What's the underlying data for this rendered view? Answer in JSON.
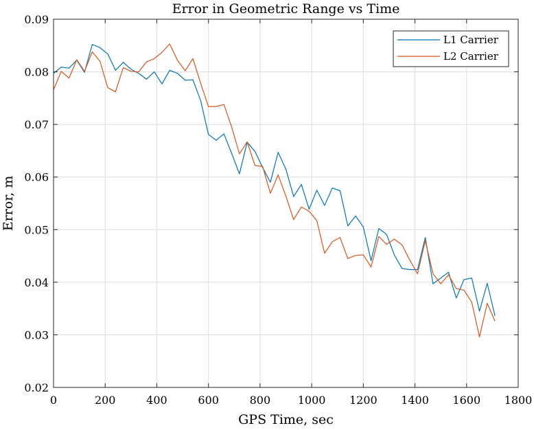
{
  "chart_data": {
    "type": "line",
    "title": "Error in Geometric Range vs Time",
    "xlabel": "GPS Time, sec",
    "ylabel": "Error, m",
    "xlim": [
      0,
      1800
    ],
    "ylim": [
      0.02,
      0.09
    ],
    "xticks": [
      0,
      200,
      400,
      600,
      800,
      1000,
      1200,
      1400,
      1600,
      1800
    ],
    "yticks": [
      0.02,
      0.03,
      0.04,
      0.05,
      0.06,
      0.07,
      0.08,
      0.09
    ],
    "xtick_labels": [
      "0",
      "200",
      "400",
      "600",
      "800",
      "1000",
      "1200",
      "1400",
      "1600",
      "1800"
    ],
    "ytick_labels": [
      "0.02",
      "0.03",
      "0.04",
      "0.05",
      "0.06",
      "0.07",
      "0.08",
      "0.09"
    ],
    "grid": true,
    "legend_position": "top-right",
    "x": [
      0,
      30,
      60,
      90,
      120,
      150,
      180,
      210,
      240,
      270,
      300,
      330,
      360,
      390,
      420,
      450,
      480,
      510,
      540,
      570,
      600,
      630,
      660,
      690,
      720,
      750,
      780,
      810,
      840,
      870,
      900,
      930,
      960,
      990,
      1020,
      1050,
      1080,
      1110,
      1140,
      1170,
      1200,
      1230,
      1260,
      1290,
      1320,
      1350,
      1380,
      1410,
      1440,
      1470,
      1500,
      1530,
      1560,
      1590,
      1620,
      1650,
      1680,
      1710
    ],
    "series": [
      {
        "name": "L1 Carrier",
        "color": "#0072BD",
        "values": [
          0.0797,
          0.0809,
          0.0807,
          0.0822,
          0.0799,
          0.0852,
          0.0846,
          0.0834,
          0.0803,
          0.0818,
          0.0805,
          0.0797,
          0.0786,
          0.08,
          0.0777,
          0.0803,
          0.0797,
          0.0784,
          0.0785,
          0.0745,
          0.0681,
          0.067,
          0.0682,
          0.0645,
          0.0606,
          0.0666,
          0.0649,
          0.0618,
          0.059,
          0.0647,
          0.0615,
          0.0563,
          0.0586,
          0.0539,
          0.0575,
          0.0546,
          0.0579,
          0.0574,
          0.0507,
          0.0526,
          0.0505,
          0.0441,
          0.0502,
          0.0491,
          0.0452,
          0.0426,
          0.0424,
          0.0424,
          0.0485,
          0.0397,
          0.0408,
          0.0419,
          0.037,
          0.0405,
          0.0408,
          0.0345,
          0.0398,
          0.0336
        ]
      },
      {
        "name": "L2 Carrier",
        "color": "#D95319",
        "values": [
          0.0766,
          0.0801,
          0.0788,
          0.0823,
          0.0801,
          0.0838,
          0.082,
          0.077,
          0.0762,
          0.0808,
          0.0801,
          0.08,
          0.0819,
          0.0825,
          0.0837,
          0.0853,
          0.0822,
          0.0802,
          0.0825,
          0.0778,
          0.0734,
          0.0734,
          0.0738,
          0.0695,
          0.0644,
          0.0667,
          0.0622,
          0.062,
          0.0569,
          0.0604,
          0.0564,
          0.0519,
          0.0543,
          0.0535,
          0.0517,
          0.0455,
          0.0477,
          0.0485,
          0.0445,
          0.0451,
          0.0452,
          0.0429,
          0.0487,
          0.0472,
          0.0482,
          0.0471,
          0.0442,
          0.0416,
          0.0479,
          0.0416,
          0.0397,
          0.0414,
          0.0388,
          0.0385,
          0.0362,
          0.0296,
          0.036,
          0.0326
        ]
      }
    ]
  }
}
